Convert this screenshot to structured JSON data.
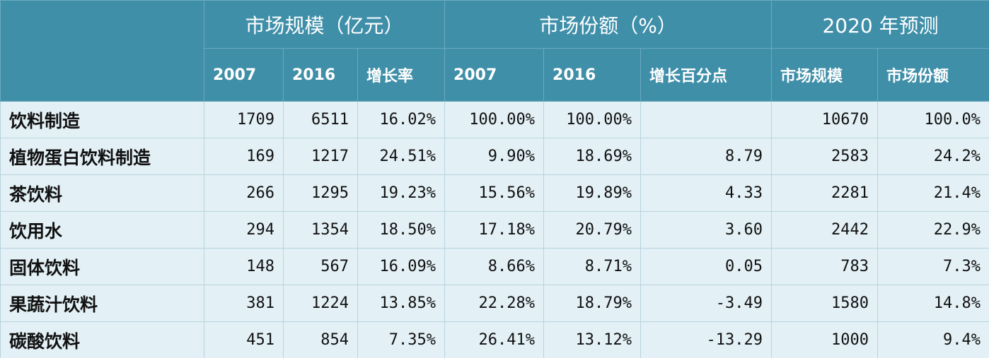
{
  "table": {
    "groups": [
      "市场规模（亿元）",
      "市场份额（%）",
      "2020 年预测"
    ],
    "subheaders": [
      "2007",
      "2016",
      "增长率",
      "2007",
      "2016",
      "增长百分点",
      "市场规模",
      "市场份额"
    ],
    "rows": [
      [
        "饮料制造",
        "1709",
        "6511",
        "16.02%",
        "100.00%",
        "100.00%",
        null,
        "10670",
        "100.0%"
      ],
      [
        "植物蛋白饮料制造",
        "169",
        "1217",
        "24.51%",
        "9.90%",
        "18.69%",
        "8.79",
        "2583",
        "24.2%"
      ],
      [
        "茶饮料",
        "266",
        "1295",
        "19.23%",
        "15.56%",
        "19.89%",
        "4.33",
        "2281",
        "21.4%"
      ],
      [
        "饮用水",
        "294",
        "1354",
        "18.50%",
        "17.18%",
        "20.79%",
        "3.60",
        "2442",
        "22.9%"
      ],
      [
        "固体饮料",
        "148",
        "567",
        "16.09%",
        "8.66%",
        "8.71%",
        "0.05",
        "783",
        "7.3%"
      ],
      [
        "果蔬汁饮料",
        "381",
        "1224",
        "13.85%",
        "22.28%",
        "18.79%",
        "-3.49",
        "1580",
        "14.8%"
      ],
      [
        "碳酸饮料",
        "451",
        "854",
        "7.35%",
        "26.41%",
        "13.12%",
        "-13.29",
        "1000",
        "9.4%"
      ]
    ]
  }
}
